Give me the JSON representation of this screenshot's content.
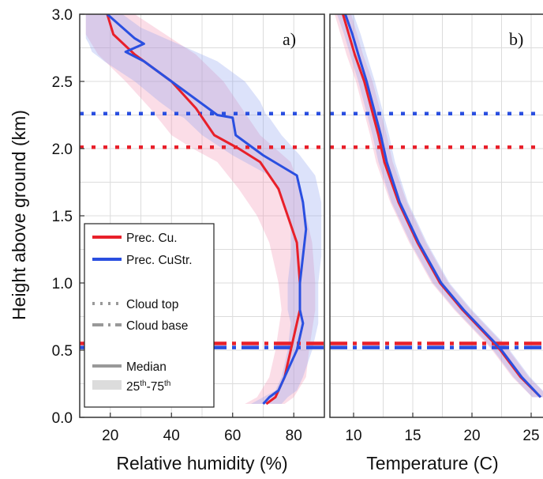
{
  "chart_data": [
    {
      "type": "line",
      "panel_label": "a)",
      "xlabel": "Relative humidity (%)",
      "ylabel": "Height above ground (km)",
      "xlim": [
        10,
        90
      ],
      "ylim": [
        0,
        3
      ],
      "xticks": [
        20,
        40,
        60,
        80
      ],
      "yticks": [
        0.0,
        0.5,
        1.0,
        1.5,
        2.0,
        2.5,
        3.0
      ],
      "ytick_labels": [
        "0.0",
        "0.5",
        "1.0",
        "1.5",
        "2.0",
        "2.5",
        "3.0"
      ],
      "grid": true,
      "series": [
        {
          "name": "Prec. Cu.",
          "color": "#e8202a",
          "median": {
            "y": [
              0.1,
              0.15,
              0.3,
              0.5,
              0.8,
              1.0,
              1.3,
              1.5,
              1.7,
              1.9,
              2.0,
              2.1,
              2.3,
              2.5,
              2.7,
              2.85,
              3.0
            ],
            "x": [
              71,
              74,
              77,
              79,
              82,
              82,
              81,
              78,
              75,
              69,
              62,
              54,
              48,
              40,
              28,
              21,
              19
            ]
          },
          "p25": [
            64,
            68,
            72,
            74,
            76,
            75,
            72,
            68,
            62,
            55,
            47,
            40,
            33,
            25,
            16,
            12,
            12
          ],
          "p75": [
            77,
            80,
            84,
            85,
            87,
            87,
            86,
            84,
            82,
            79,
            74,
            69,
            63,
            57,
            48,
            38,
            28
          ]
        },
        {
          "name": "Prec. CuStr.",
          "color": "#2a4fe0",
          "median": {
            "y": [
              0.1,
              0.15,
              0.2,
              0.3,
              0.5,
              0.7,
              0.8,
              1.0,
              1.2,
              1.4,
              1.6,
              1.8,
              1.95,
              2.1,
              2.23,
              2.25,
              2.35,
              2.5,
              2.65,
              2.72,
              2.78,
              2.82,
              2.9,
              3.0
            ],
            "x": [
              70,
              72,
              75,
              77,
              81,
              83,
              82,
              82,
              83,
              84,
              83,
              81,
              70,
              61,
              60,
              55,
              49,
              40,
              31,
              25,
              31,
              28,
              24,
              19
            ]
          },
          "p25": [
            66,
            70,
            74,
            76,
            78,
            79,
            78,
            78,
            79,
            79,
            77,
            72,
            60,
            50,
            44,
            42,
            36,
            28,
            18,
            14,
            13,
            12,
            12,
            12
          ],
          "p75": [
            76,
            78,
            81,
            83,
            86,
            88,
            88,
            88,
            89,
            89,
            89,
            87,
            82,
            76,
            72,
            71,
            69,
            64,
            55,
            48,
            42,
            38,
            30,
            24
          ]
        }
      ],
      "hlines": [
        {
          "y": 2.26,
          "style": "dotted",
          "color": "#2a4fe0"
        },
        {
          "y": 2.01,
          "style": "dotted",
          "color": "#e8202a"
        },
        {
          "y": 0.55,
          "style": "dashdot",
          "color": "#e8202a"
        },
        {
          "y": 0.52,
          "style": "dashdot",
          "color": "#2a4fe0"
        }
      ],
      "legend": {
        "placement": "lower-left",
        "entries": [
          "Prec. Cu.",
          "Prec. CuStr.",
          "Cloud top",
          "Cloud base",
          "Median"
        ],
        "iqr_label": {
          "pre": "25",
          "sup1": "th",
          "mid": "-75",
          "sup2": "th"
        }
      }
    },
    {
      "type": "line",
      "panel_label": "b)",
      "xlabel": "Temperature (C)",
      "ylabel": "",
      "xlim": [
        8,
        26
      ],
      "ylim": [
        0,
        3
      ],
      "xticks": [
        10,
        15,
        20,
        25
      ],
      "xtick_labels": [
        "10",
        "15",
        "20",
        "25"
      ],
      "grid": true,
      "series": [
        {
          "name": "Prec. Cu.",
          "color": "#e8202a",
          "median": {
            "y": [
              0.15,
              0.3,
              0.5,
              0.55,
              0.8,
              1.0,
              1.3,
              1.6,
              1.9,
              2.1,
              2.3,
              2.5,
              2.7,
              2.85,
              3.0
            ],
            "x": [
              25.8,
              24.1,
              22.4,
              21.9,
              19.2,
              17.3,
              15.4,
              13.8,
              12.6,
              12.1,
              11.5,
              10.9,
              10.1,
              9.6,
              9.1
            ]
          },
          "band": 0.7
        },
        {
          "name": "Prec. CuStr.",
          "color": "#2a4fe0",
          "median": {
            "y": [
              0.15,
              0.3,
              0.5,
              0.55,
              0.8,
              1.0,
              1.3,
              1.6,
              1.9,
              2.1,
              2.3,
              2.5,
              2.7,
              2.85,
              3.0
            ],
            "x": [
              25.8,
              24.2,
              22.5,
              22.0,
              19.3,
              17.4,
              15.5,
              13.9,
              12.8,
              12.3,
              11.7,
              11.1,
              10.4,
              9.9,
              9.3
            ]
          },
          "band": 0.7
        }
      ],
      "hlines": [
        {
          "y": 2.26,
          "style": "dotted",
          "color": "#2a4fe0"
        },
        {
          "y": 2.01,
          "style": "dotted",
          "color": "#e8202a"
        },
        {
          "y": 0.55,
          "style": "dashdot",
          "color": "#e8202a"
        },
        {
          "y": 0.52,
          "style": "dashdot",
          "color": "#2a4fe0"
        }
      ]
    }
  ]
}
